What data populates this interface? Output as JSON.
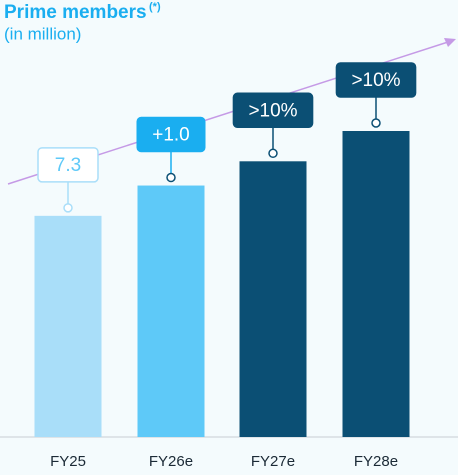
{
  "chart_data": {
    "type": "bar",
    "title": "Prime members",
    "title_superscript": "(*)",
    "subtitle": "(in million)",
    "categories": [
      "FY25",
      "FY26e",
      "FY27e",
      "FY28e"
    ],
    "values": [
      7.3,
      8.3,
      9.1,
      10.1
    ],
    "colors": [
      "#a9def9",
      "#5ec9f8",
      "#0b4f74",
      "#0b4f74"
    ],
    "annotations": [
      "7.3",
      "+1.0",
      ">10%",
      ">10%"
    ],
    "annotation_colors": [
      "#ffffff",
      "#1aaef0",
      "#0b4f74",
      "#0b4f74"
    ],
    "trend_color": "#c59ae6"
  }
}
